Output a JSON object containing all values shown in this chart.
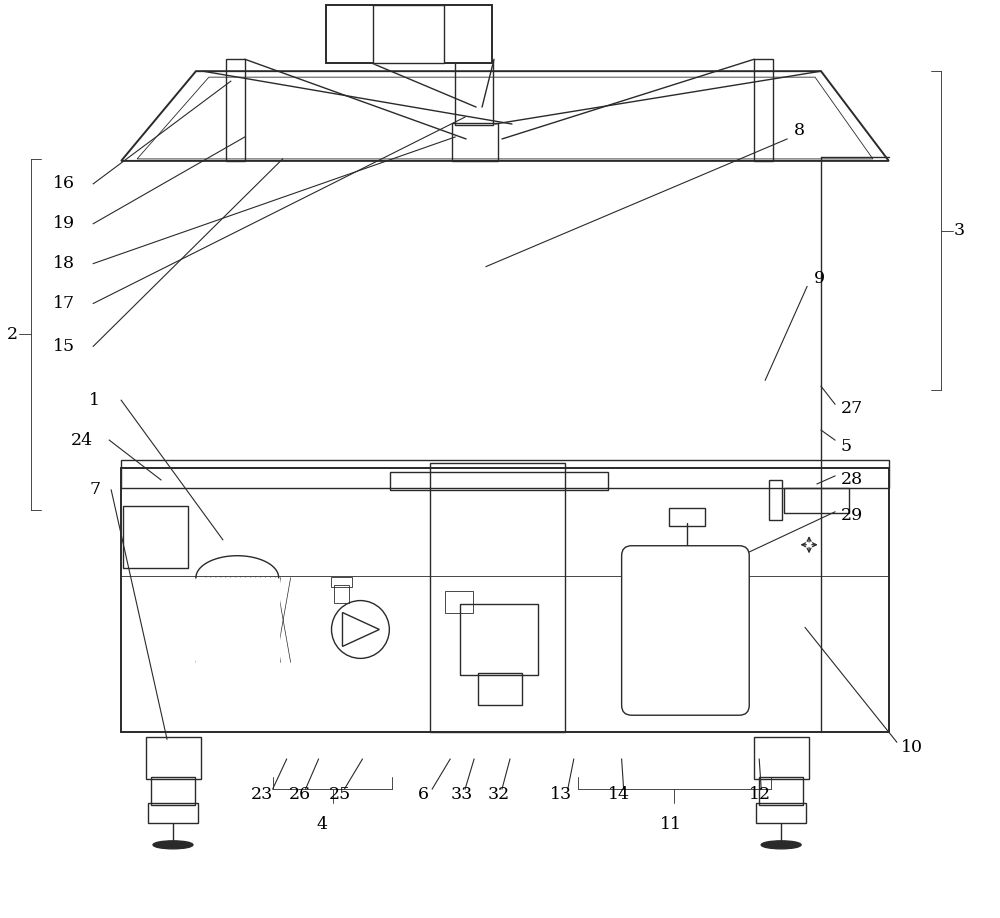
{
  "bg_color": "#ffffff",
  "line_color": "#2a2a2a",
  "label_color": "#000000",
  "fig_w": 10.0,
  "fig_h": 9.18,
  "dpi": 100
}
